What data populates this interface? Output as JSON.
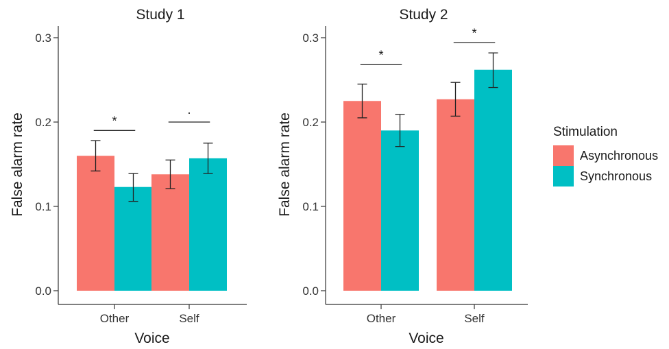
{
  "chart_data": [
    {
      "type": "bar",
      "title": "Study 1",
      "xlabel": "Voice",
      "ylabel": "False alarm rate",
      "categories": [
        "Other",
        "Self"
      ],
      "ylim": [
        0,
        0.3
      ],
      "yticks": [
        "0.0",
        "0.1",
        "0.2",
        "0.3"
      ],
      "grid": false,
      "series": [
        {
          "name": "Asynchronous",
          "values": [
            0.16,
            0.138
          ],
          "error_low": [
            0.142,
            0.121
          ],
          "error_high": [
            0.178,
            0.155
          ]
        },
        {
          "name": "Synchronous",
          "values": [
            0.123,
            0.157
          ],
          "error_low": [
            0.106,
            0.139
          ],
          "error_high": [
            0.139,
            0.175
          ]
        }
      ],
      "annotations": [
        {
          "category": "Other",
          "label": "*",
          "y": 0.19
        },
        {
          "category": "Self",
          "label": "·",
          "y": 0.2
        }
      ]
    },
    {
      "type": "bar",
      "title": "Study 2",
      "xlabel": "Voice",
      "ylabel": "False alarm rate",
      "categories": [
        "Other",
        "Self"
      ],
      "ylim": [
        0,
        0.3
      ],
      "yticks": [
        "0.0",
        "0.1",
        "0.2",
        "0.3"
      ],
      "grid": false,
      "series": [
        {
          "name": "Asynchronous",
          "values": [
            0.225,
            0.227
          ],
          "error_low": [
            0.205,
            0.207
          ],
          "error_high": [
            0.245,
            0.247
          ]
        },
        {
          "name": "Synchronous",
          "values": [
            0.19,
            0.262
          ],
          "error_low": [
            0.171,
            0.241
          ],
          "error_high": [
            0.209,
            0.282
          ]
        }
      ],
      "annotations": [
        {
          "category": "Other",
          "label": "*",
          "y": 0.268
        },
        {
          "category": "Self",
          "label": "*",
          "y": 0.294
        }
      ]
    }
  ],
  "legend": {
    "title": "Stimulation",
    "position": "right",
    "items": [
      {
        "label": "Asynchronous",
        "color": "#F8766D"
      },
      {
        "label": "Synchronous",
        "color": "#00BFC4"
      }
    ]
  },
  "colors": {
    "asynchronous": "#F8766D",
    "synchronous": "#00BFC4",
    "axis": "#333333"
  }
}
